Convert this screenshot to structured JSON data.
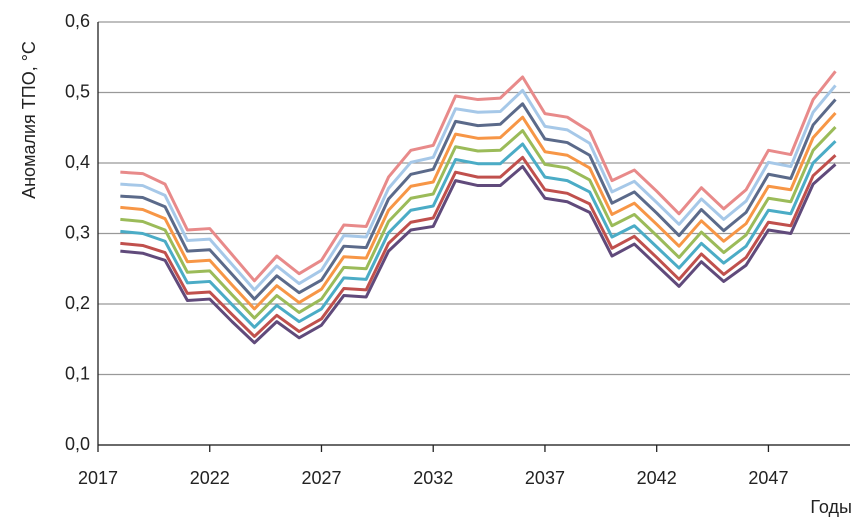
{
  "chart_data": {
    "type": "line",
    "x_label": "Годы",
    "y_label": "Аномалия ТПО, °С",
    "x": [
      2018,
      2019,
      2020,
      2021,
      2022,
      2023,
      2024,
      2025,
      2026,
      2027,
      2028,
      2029,
      2030,
      2031,
      2032,
      2033,
      2034,
      2035,
      2036,
      2037,
      2038,
      2039,
      2040,
      2041,
      2042,
      2043,
      2044,
      2045,
      2046,
      2047,
      2048,
      2049,
      2050
    ],
    "xlim": [
      2017,
      2050.65
    ],
    "xticks": [
      2017,
      2022,
      2027,
      2032,
      2037,
      2042,
      2047
    ],
    "ylim": [
      0,
      0.6
    ],
    "yticks": [
      {
        "value": 0,
        "label": "0,0"
      },
      {
        "value": 0.1,
        "label": "0,1"
      },
      {
        "value": 0.2,
        "label": "0,2"
      },
      {
        "value": 0.3,
        "label": "0,3"
      },
      {
        "value": 0.4,
        "label": "0,4"
      },
      {
        "value": 0.5,
        "label": "0,5"
      },
      {
        "value": 0.6,
        "label": "0,6"
      }
    ],
    "grid": true,
    "series": [
      {
        "color": "#604a7b",
        "values": [
          0.275,
          0.272,
          0.262,
          0.205,
          0.207,
          0.175,
          0.145,
          0.175,
          0.152,
          0.17,
          0.212,
          0.21,
          0.275,
          0.305,
          0.31,
          0.375,
          0.368,
          0.368,
          0.395,
          0.35,
          0.345,
          0.33,
          0.268,
          0.285,
          0.255,
          0.225,
          0.26,
          0.232,
          0.255,
          0.305,
          0.3,
          0.37,
          0.398
        ]
      },
      {
        "color": "#c0504d",
        "values": [
          0.286,
          0.283,
          0.273,
          0.215,
          0.217,
          0.185,
          0.154,
          0.184,
          0.161,
          0.179,
          0.222,
          0.22,
          0.286,
          0.316,
          0.322,
          0.387,
          0.38,
          0.38,
          0.408,
          0.362,
          0.357,
          0.342,
          0.279,
          0.296,
          0.266,
          0.235,
          0.271,
          0.242,
          0.266,
          0.316,
          0.311,
          0.382,
          0.411
        ]
      },
      {
        "color": "#4bacc6",
        "values": [
          0.303,
          0.3,
          0.289,
          0.23,
          0.232,
          0.199,
          0.167,
          0.198,
          0.175,
          0.193,
          0.237,
          0.235,
          0.301,
          0.333,
          0.339,
          0.405,
          0.399,
          0.399,
          0.427,
          0.38,
          0.375,
          0.359,
          0.295,
          0.311,
          0.281,
          0.251,
          0.286,
          0.258,
          0.282,
          0.333,
          0.328,
          0.4,
          0.431
        ]
      },
      {
        "color": "#9bbb59",
        "values": [
          0.32,
          0.317,
          0.305,
          0.245,
          0.247,
          0.213,
          0.18,
          0.212,
          0.188,
          0.207,
          0.252,
          0.25,
          0.317,
          0.35,
          0.356,
          0.423,
          0.417,
          0.418,
          0.446,
          0.398,
          0.393,
          0.376,
          0.311,
          0.327,
          0.297,
          0.266,
          0.302,
          0.273,
          0.298,
          0.35,
          0.345,
          0.418,
          0.451
        ]
      },
      {
        "color": "#f79646",
        "values": [
          0.337,
          0.334,
          0.321,
          0.26,
          0.262,
          0.227,
          0.193,
          0.226,
          0.202,
          0.221,
          0.267,
          0.265,
          0.333,
          0.367,
          0.373,
          0.441,
          0.435,
          0.436,
          0.465,
          0.416,
          0.411,
          0.393,
          0.327,
          0.343,
          0.313,
          0.282,
          0.318,
          0.289,
          0.314,
          0.367,
          0.362,
          0.436,
          0.471
        ]
      },
      {
        "color": "#5b6a8a",
        "values": [
          0.353,
          0.351,
          0.338,
          0.275,
          0.277,
          0.242,
          0.207,
          0.24,
          0.216,
          0.234,
          0.282,
          0.28,
          0.349,
          0.384,
          0.391,
          0.459,
          0.453,
          0.455,
          0.484,
          0.434,
          0.429,
          0.411,
          0.343,
          0.359,
          0.329,
          0.297,
          0.334,
          0.304,
          0.33,
          0.384,
          0.378,
          0.454,
          0.49
        ]
      },
      {
        "color": "#a6c8e8",
        "values": [
          0.37,
          0.368,
          0.354,
          0.29,
          0.292,
          0.256,
          0.22,
          0.254,
          0.229,
          0.248,
          0.297,
          0.295,
          0.364,
          0.401,
          0.408,
          0.477,
          0.472,
          0.473,
          0.503,
          0.452,
          0.447,
          0.428,
          0.359,
          0.374,
          0.344,
          0.313,
          0.349,
          0.32,
          0.346,
          0.401,
          0.395,
          0.472,
          0.51
        ]
      },
      {
        "color": "#e88a8a",
        "values": [
          0.387,
          0.385,
          0.37,
          0.305,
          0.307,
          0.27,
          0.233,
          0.268,
          0.243,
          0.262,
          0.312,
          0.31,
          0.38,
          0.418,
          0.425,
          0.495,
          0.49,
          0.492,
          0.522,
          0.47,
          0.465,
          0.445,
          0.375,
          0.39,
          0.36,
          0.328,
          0.365,
          0.335,
          0.362,
          0.418,
          0.412,
          0.49,
          0.53
        ]
      }
    ]
  }
}
